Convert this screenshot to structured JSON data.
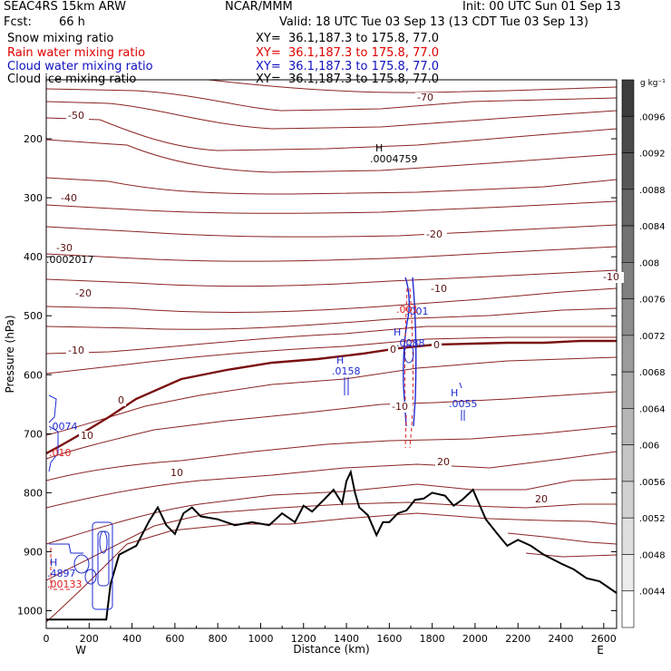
{
  "header": {
    "model": "SEAC4RS 15km ARW",
    "org": "NCAR/MMM",
    "init": "Init: 00 UTC Sun 01 Sep 13",
    "fcst_label": "Fcst:",
    "fcst_value": "66 h",
    "valid": "Valid: 18 UTC Tue 03 Sep 13 (13 CDT Tue 03 Sep 13)",
    "fields": [
      {
        "name": "Snow mixing ratio",
        "xy": "XY=  36.1,187.3 to 175.8, 77.0",
        "color": "#000000"
      },
      {
        "name": "Rain water mixing ratio",
        "xy": "XY=  36.1,187.3 to 175.8, 77.0",
        "color": "#e00000"
      },
      {
        "name": "Cloud water mixing ratio",
        "xy": "XY=  36.1,187.3 to 175.8, 77.0",
        "color": "#1010c0"
      },
      {
        "name": "Cloud ice mixing ratio",
        "xy": "XY=  36.1,187.3 to 175.8, 77.0",
        "color": "#000000"
      }
    ]
  },
  "chart_data": {
    "type": "cross-section contour",
    "xlabel": "Distance (km)",
    "ylabel": "Pressure (hPa)",
    "xlim": [
      0,
      2660
    ],
    "ylim": [
      1030,
      100
    ],
    "x_ticks": [
      0,
      200,
      400,
      600,
      800,
      1000,
      1200,
      1400,
      1600,
      1800,
      2000,
      2200,
      2400,
      2600
    ],
    "y_ticks": [
      200,
      300,
      400,
      500,
      600,
      700,
      800,
      900,
      1000
    ],
    "x_end_labels": {
      "left": "W",
      "right": "E"
    },
    "colorbar": {
      "unit": "g kg⁻¹",
      "ticks": [
        ".0096",
        ".0092",
        ".0088",
        ".0084",
        ".008",
        ".0076",
        ".0072",
        ".0068",
        ".0064",
        ".006",
        ".0056",
        ".0052",
        ".0048",
        ".0044"
      ]
    },
    "temperature_contours_C": [
      -70,
      -60,
      -50,
      -40,
      -30,
      -20,
      -10,
      0,
      10,
      20,
      30
    ],
    "contour_labels": [
      "-70",
      "-50",
      "-40",
      "-30",
      "-20",
      "-20",
      "-10",
      "-10",
      "-10",
      "0",
      "0",
      "0",
      "10",
      "10",
      "20",
      "20",
      "-10"
    ],
    "terrain": {
      "x": [
        0,
        280,
        300,
        340,
        420,
        480,
        520,
        560,
        600,
        640,
        680,
        720,
        800,
        880,
        960,
        1040,
        1100,
        1160,
        1200,
        1240,
        1300,
        1340,
        1380,
        1400,
        1420,
        1440,
        1460,
        1500,
        1540,
        1570,
        1600,
        1640,
        1680,
        1720,
        1760,
        1800,
        1860,
        1900,
        1940,
        1990,
        2020,
        2050,
        2100,
        2150,
        2200,
        2260,
        2320,
        2400,
        2460,
        2520,
        2580,
        2620,
        2660
      ],
      "p": [
        1015,
        1015,
        955,
        905,
        890,
        848,
        825,
        855,
        870,
        835,
        825,
        840,
        845,
        855,
        850,
        855,
        835,
        850,
        822,
        832,
        810,
        795,
        818,
        780,
        765,
        800,
        825,
        838,
        872,
        850,
        850,
        835,
        830,
        812,
        810,
        800,
        805,
        822,
        812,
        795,
        820,
        845,
        868,
        890,
        880,
        890,
        905,
        920,
        930,
        945,
        950,
        960,
        970
      ]
    },
    "annotations": [
      {
        "label": "H",
        "value": ".0004759",
        "field": "Cloud ice mixing ratio",
        "x_km": 1540,
        "p": 215
      },
      {
        "label": "",
        "value": ".0002017",
        "field": "Cloud ice mixing ratio",
        "x_km": 0,
        "p": 408
      },
      {
        "label": "H",
        "value": ".0158",
        "field": "Cloud water mixing ratio",
        "x_km": 1380,
        "p": 605
      },
      {
        "label": "H",
        "value": ".0088",
        "field": "Cloud water mixing ratio",
        "x_km": 1660,
        "p": 570
      },
      {
        "label": "H",
        "value": ".0055",
        "field": "Cloud water mixing ratio",
        "x_km": 1930,
        "p": 668
      },
      {
        "label": "",
        "value": ".001",
        "field": "Cloud water mixing ratio",
        "x_km": 1695,
        "p": 508
      },
      {
        "label": "",
        "value": ".001",
        "field": "Rain water mixing ratio",
        "x_km": 1660,
        "p": 505
      },
      {
        "label": "",
        "value": ".0074",
        "field": "Cloud water mixing ratio",
        "x_km": 5,
        "p": 690
      },
      {
        "label": "",
        "value": ".010",
        "field": "Rain water mixing ratio",
        "x_km": 5,
        "p": 720
      },
      {
        "label": "H",
        "value": ".4897",
        "field": "Cloud water mixing ratio",
        "x_km": 10,
        "p": 955
      },
      {
        "label": "",
        "value": ".00133",
        "field": "Rain water mixing ratio",
        "x_km": 10,
        "p": 985
      }
    ]
  }
}
